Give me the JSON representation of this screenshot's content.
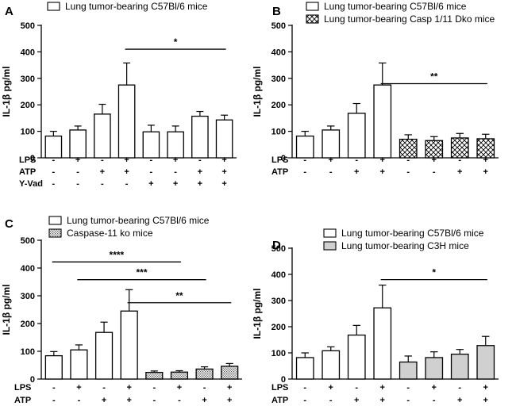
{
  "chart_data": [
    {
      "panel": "A",
      "type": "bar",
      "ylabel": "IL-1β pg/ml",
      "ylim": [
        0,
        500
      ],
      "yticks": [
        0,
        100,
        200,
        300,
        400,
        500
      ],
      "categories": [
        "1",
        "2",
        "3",
        "4",
        "5",
        "6",
        "7",
        "8"
      ],
      "values": [
        82,
        105,
        165,
        275,
        98,
        98,
        157,
        143
      ],
      "errors": [
        18,
        15,
        37,
        83,
        25,
        22,
        18,
        18
      ],
      "fills": [
        "white",
        "white",
        "white",
        "white",
        "white",
        "white",
        "white",
        "white"
      ],
      "legend": [
        {
          "label": "Lung tumor-bearing C57Bl/6 mice",
          "fill": "white"
        }
      ],
      "conditions": [
        {
          "label": "LPS",
          "signs": [
            "-",
            "+",
            "-",
            "+",
            "-",
            "+",
            "-",
            "+"
          ]
        },
        {
          "label": "ATP",
          "signs": [
            "-",
            "-",
            "+",
            "+",
            "-",
            "-",
            "+",
            "+"
          ]
        },
        {
          "label": "Y-Vad",
          "signs": [
            "-",
            "-",
            "-",
            "-",
            "+",
            "+",
            "+",
            "+"
          ]
        }
      ],
      "significance": [
        {
          "label": "*",
          "from": 4,
          "to": 8,
          "y": 410
        }
      ]
    },
    {
      "panel": "B",
      "type": "bar",
      "ylabel": "IL-1β pg/ml",
      "ylim": [
        0,
        500
      ],
      "yticks": [
        0,
        100,
        200,
        300,
        400,
        500
      ],
      "categories": [
        "1",
        "2",
        "3",
        "4",
        "5",
        "6",
        "7",
        "8"
      ],
      "values": [
        82,
        105,
        168,
        275,
        70,
        65,
        75,
        72
      ],
      "errors": [
        18,
        15,
        37,
        83,
        17,
        15,
        17,
        17
      ],
      "fills": [
        "white",
        "white",
        "white",
        "white",
        "hatch",
        "hatch",
        "hatch",
        "hatch"
      ],
      "legend": [
        {
          "label": "Lung tumor-bearing C57Bl/6 mice",
          "fill": "white"
        },
        {
          "label": "Lung tumor-bearing Casp 1/11 Dko mice",
          "fill": "hatch"
        }
      ],
      "conditions": [
        {
          "label": "LPS",
          "signs": [
            "-",
            "+",
            "-",
            "+",
            "-",
            "+",
            "-",
            "+"
          ]
        },
        {
          "label": "ATP",
          "signs": [
            "-",
            "-",
            "+",
            "+",
            "-",
            "-",
            "+",
            "+"
          ]
        }
      ],
      "significance": [
        {
          "label": "**",
          "from": 4,
          "to": 8,
          "y": 280
        }
      ]
    },
    {
      "panel": "C",
      "type": "bar",
      "ylabel": "IL-1β pg/ml",
      "ylim": [
        0,
        500
      ],
      "yticks": [
        0,
        100,
        200,
        300,
        400,
        500
      ],
      "categories": [
        "1",
        "2",
        "3",
        "4",
        "5",
        "6",
        "7",
        "8"
      ],
      "values": [
        84,
        105,
        168,
        245,
        24,
        25,
        36,
        46
      ],
      "errors": [
        15,
        18,
        37,
        77,
        5,
        5,
        8,
        10
      ],
      "fills": [
        "white",
        "white",
        "white",
        "white",
        "dots",
        "dots",
        "dots",
        "dots"
      ],
      "legend": [
        {
          "label": "Lung tumor-bearing C57Bl/6 mice",
          "fill": "white"
        },
        {
          "label": "Caspase-11 ko mice",
          "fill": "dots"
        }
      ],
      "conditions": [
        {
          "label": "LPS",
          "signs": [
            "-",
            "+",
            "-",
            "+",
            "-",
            "+",
            "-",
            "+"
          ]
        },
        {
          "label": "ATP",
          "signs": [
            "-",
            "-",
            "+",
            "+",
            "-",
            "-",
            "+",
            "+"
          ]
        }
      ],
      "significance": [
        {
          "label": "****",
          "from": 1,
          "to": 6,
          "y": 422
        },
        {
          "label": "***",
          "from": 2,
          "to": 7,
          "y": 358
        },
        {
          "label": "**",
          "from": 4,
          "to": 8,
          "y": 275
        }
      ]
    },
    {
      "panel": "D",
      "type": "bar",
      "ylabel": "IL-1β pg/ml",
      "ylim": [
        0,
        500
      ],
      "yticks": [
        0,
        100,
        200,
        300,
        400,
        500
      ],
      "categories": [
        "1",
        "2",
        "3",
        "4",
        "5",
        "6",
        "7",
        "8"
      ],
      "values": [
        82,
        108,
        168,
        272,
        65,
        82,
        95,
        128
      ],
      "errors": [
        18,
        15,
        37,
        87,
        23,
        22,
        18,
        35
      ],
      "fills": [
        "white",
        "white",
        "white",
        "white",
        "gray",
        "gray",
        "gray",
        "gray"
      ],
      "legend": [
        {
          "label": "Lung tumor-bearing C57Bl/6 mice",
          "fill": "white"
        },
        {
          "label": "Lung tumor-bearing C3H mice",
          "fill": "gray"
        }
      ],
      "conditions": [
        {
          "label": "LPS",
          "signs": [
            "-",
            "+",
            "-",
            "+",
            "-",
            "+",
            "-",
            "+"
          ]
        },
        {
          "label": "ATP",
          "signs": [
            "-",
            "-",
            "+",
            "+",
            "-",
            "-",
            "+",
            "+"
          ]
        }
      ],
      "significance": [
        {
          "label": "*",
          "from": 4,
          "to": 8,
          "y": 380
        }
      ]
    }
  ]
}
